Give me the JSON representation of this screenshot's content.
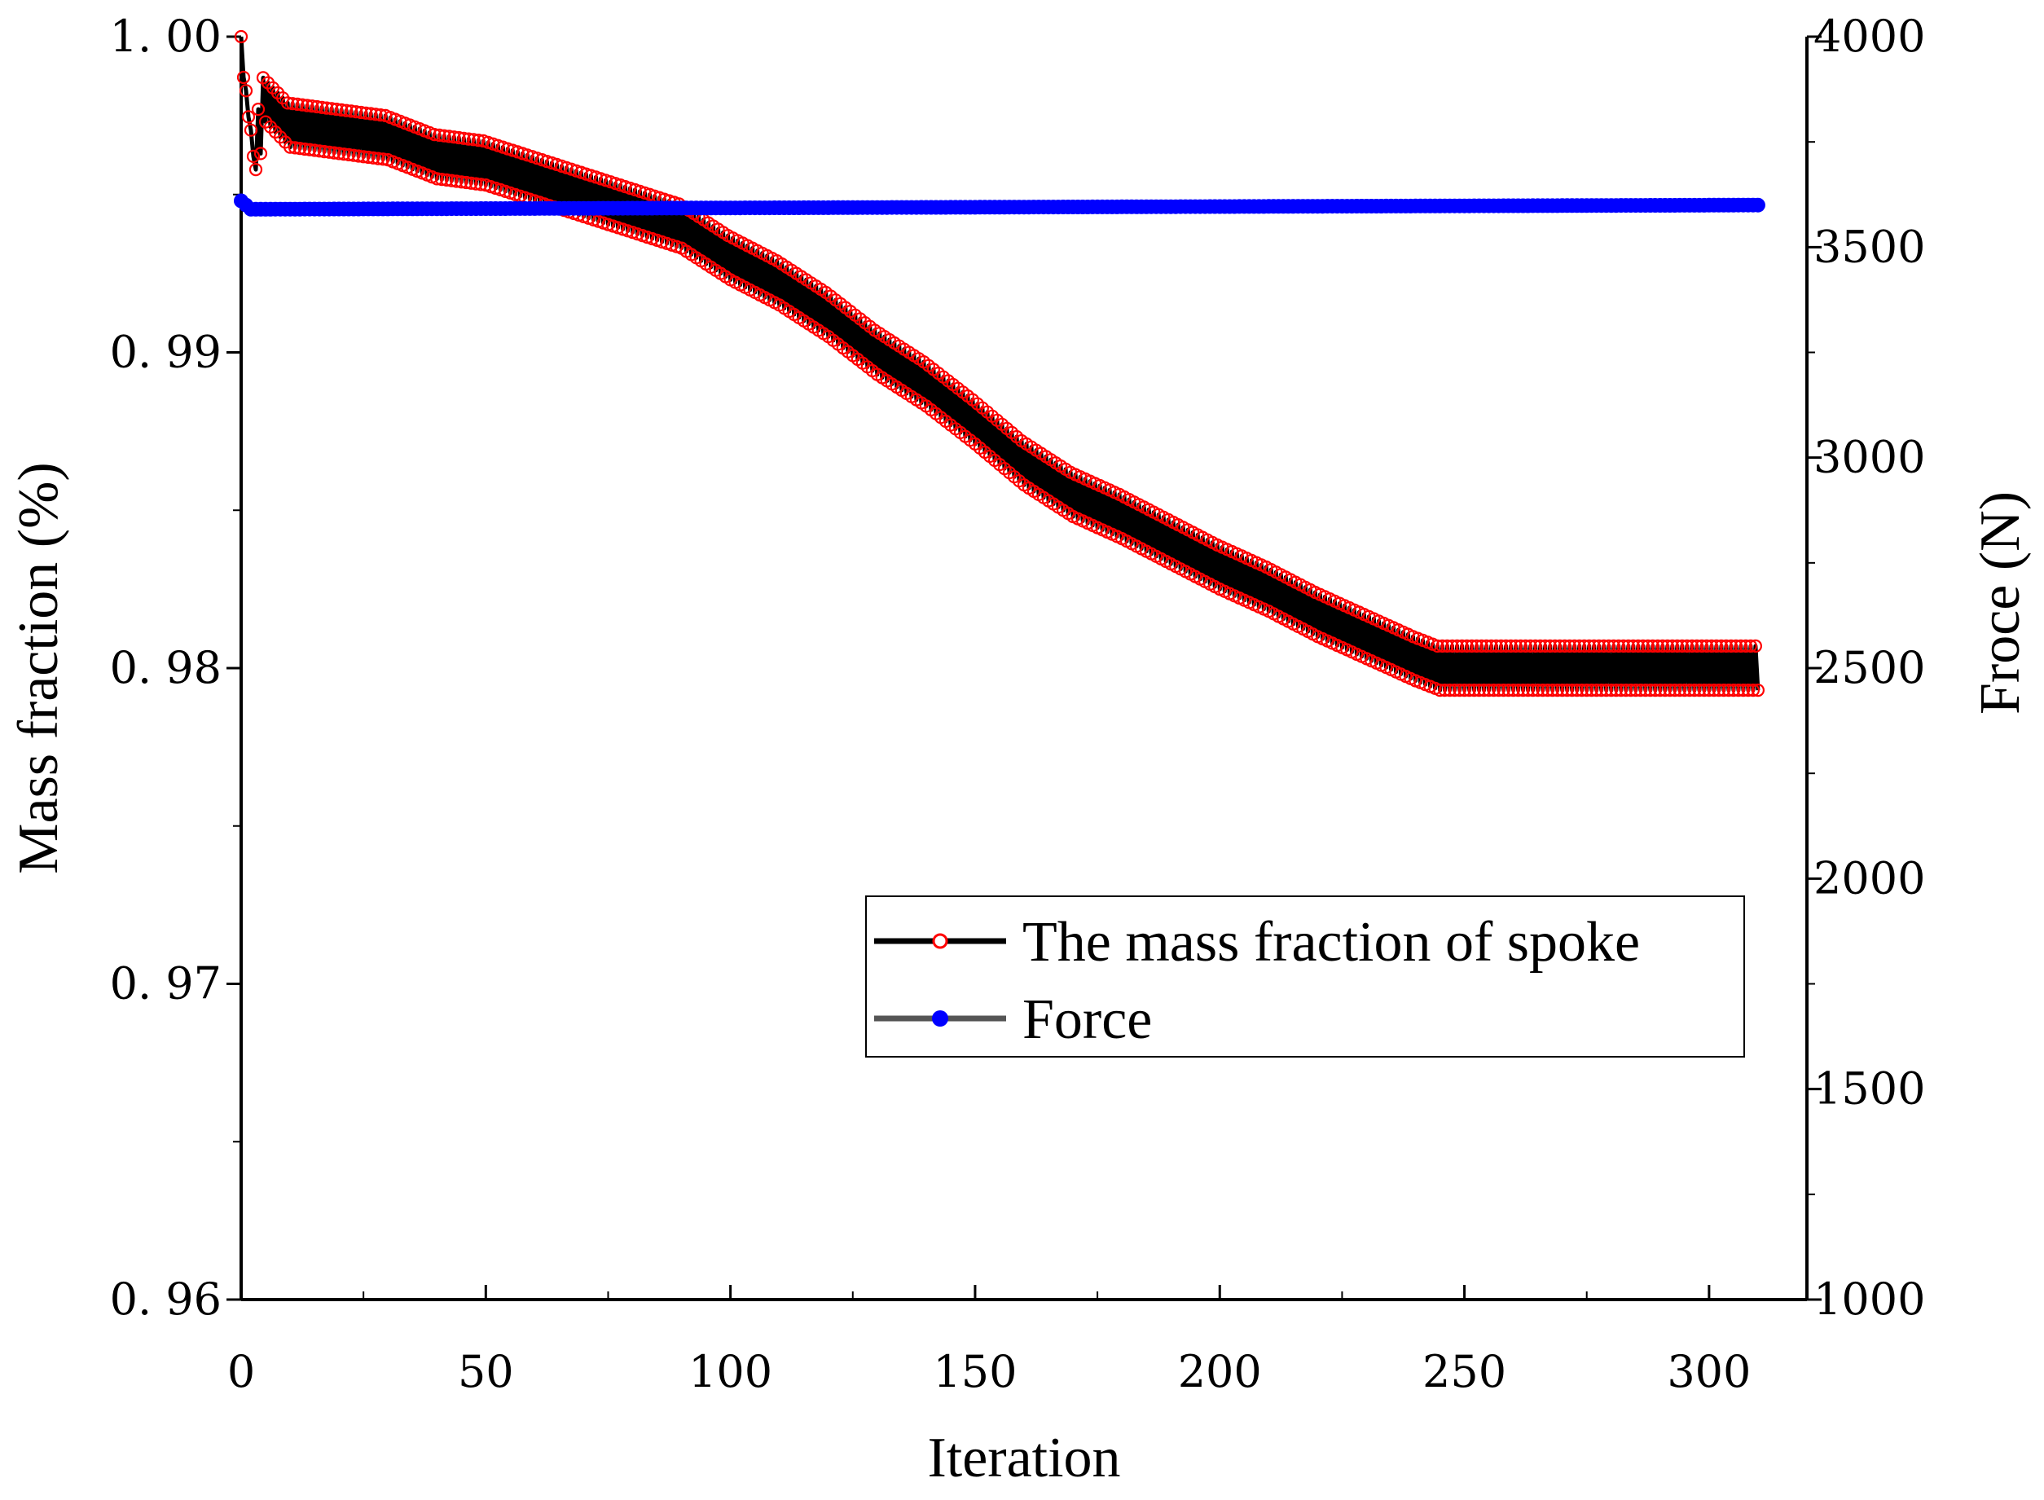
{
  "chart_data": {
    "type": "line",
    "title": "",
    "xlabel": "Iteration",
    "ylabel_left": "Mass fraction (%)",
    "ylabel_right": "Froce (N)",
    "xlim": [
      0,
      320
    ],
    "ylim_left": [
      0.96,
      1.0
    ],
    "ylim_right": [
      1000,
      4000
    ],
    "x_ticks": [
      0,
      50,
      100,
      150,
      200,
      250,
      300
    ],
    "x_tick_labels": [
      "0",
      "50",
      "100",
      "150",
      "200",
      "250",
      "300"
    ],
    "y_left_ticks": [
      0.96,
      0.97,
      0.98,
      0.99,
      1.0
    ],
    "y_left_tick_labels": [
      "0. 96",
      "0. 97",
      "0. 98",
      "0. 99",
      "1. 00"
    ],
    "y_right_ticks": [
      1000,
      1500,
      2000,
      2500,
      3000,
      3500,
      4000
    ],
    "y_right_tick_labels": [
      "1000",
      "1500",
      "2000",
      "2500",
      "3000",
      "3500",
      "4000"
    ],
    "grid": false,
    "legend_position": "lower-right",
    "colors": {
      "mass_line": "#000000",
      "mass_marker": "#ff0000",
      "force_line": "#555555",
      "force_marker": "#0000ff"
    },
    "series": [
      {
        "name": "The mass fraction of spoke",
        "axis": "left",
        "x_range": [
          0,
          310
        ],
        "trend_x": [
          0,
          1,
          3,
          5,
          10,
          20,
          30,
          40,
          50,
          60,
          70,
          80,
          90,
          100,
          110,
          120,
          130,
          140,
          150,
          160,
          170,
          180,
          190,
          200,
          210,
          220,
          230,
          240,
          245,
          250,
          260,
          270,
          280,
          290,
          300,
          310
        ],
        "trend_y": [
          1.0,
          0.9985,
          0.996,
          0.998,
          0.9972,
          0.997,
          0.9968,
          0.9962,
          0.996,
          0.9955,
          0.995,
          0.9945,
          0.994,
          0.993,
          0.9922,
          0.9912,
          0.99,
          0.989,
          0.9878,
          0.9865,
          0.9855,
          0.9848,
          0.984,
          0.9832,
          0.9825,
          0.9817,
          0.981,
          0.9803,
          0.98,
          0.98,
          0.98,
          0.98,
          0.98,
          0.98,
          0.98,
          0.98
        ],
        "oscillation_amplitude": 0.0007
      },
      {
        "name": "Force",
        "axis": "right",
        "x": [
          0,
          1,
          2,
          310
        ],
        "y": [
          3610,
          3600,
          3590,
          3600
        ]
      }
    ]
  }
}
